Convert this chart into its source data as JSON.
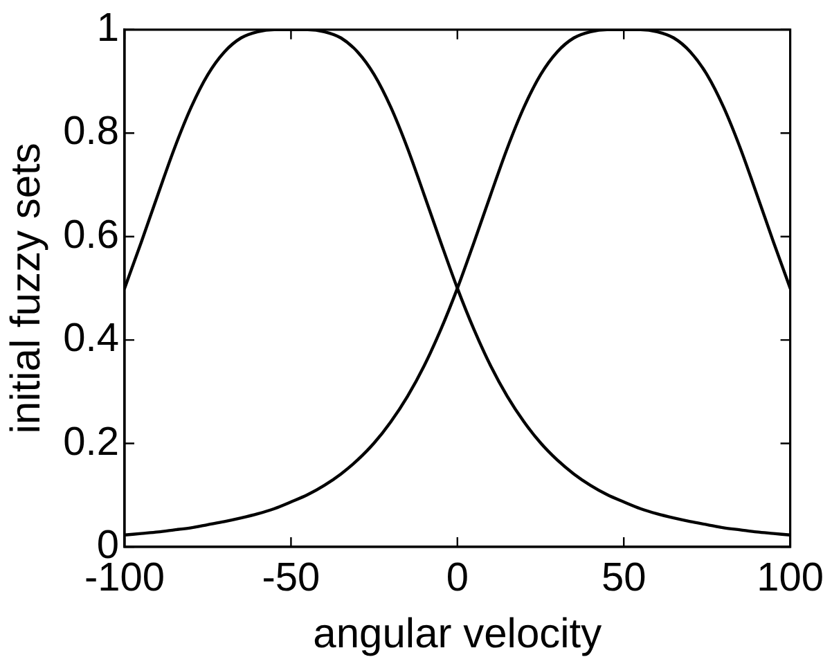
{
  "chart_data": {
    "type": "line",
    "xlabel": "angular velocity",
    "ylabel": "initial fuzzy sets",
    "x": [
      -100,
      -95,
      -90,
      -85,
      -80,
      -75,
      -70,
      -65,
      -60,
      -55,
      -50,
      -45,
      -40,
      -35,
      -30,
      -25,
      -20,
      -15,
      -10,
      -5,
      0,
      5,
      10,
      15,
      20,
      25,
      30,
      35,
      40,
      45,
      50,
      55,
      60,
      65,
      70,
      75,
      80,
      85,
      90,
      95,
      100
    ],
    "series": [
      {
        "color": "#000000",
        "values": [
          0.5,
          0.589,
          0.681,
          0.771,
          0.85,
          0.913,
          0.957,
          0.984,
          0.996,
          1.0,
          1.0,
          1.0,
          0.996,
          0.984,
          0.957,
          0.913,
          0.85,
          0.771,
          0.681,
          0.589,
          0.5,
          0.42,
          0.35,
          0.291,
          0.242,
          0.201,
          0.168,
          0.141,
          0.119,
          0.101,
          0.087,
          0.074,
          0.064,
          0.056,
          0.049,
          0.043,
          0.037,
          0.033,
          0.029,
          0.026,
          0.023
        ]
      },
      {
        "color": "#000000",
        "values": [
          0.023,
          0.026,
          0.029,
          0.033,
          0.037,
          0.043,
          0.049,
          0.056,
          0.064,
          0.074,
          0.087,
          0.101,
          0.119,
          0.141,
          0.168,
          0.201,
          0.242,
          0.291,
          0.35,
          0.42,
          0.5,
          0.589,
          0.681,
          0.771,
          0.85,
          0.913,
          0.957,
          0.984,
          0.996,
          1.0,
          1.0,
          1.0,
          0.996,
          0.984,
          0.957,
          0.913,
          0.85,
          0.771,
          0.681,
          0.589,
          0.5
        ]
      }
    ],
    "xlim": [
      -100,
      100
    ],
    "xticks": [
      -100,
      -50,
      0,
      50,
      100
    ],
    "ylim": [
      0,
      1
    ],
    "yticks": [
      0,
      0.2,
      0.4,
      0.6,
      0.8,
      1
    ],
    "legend": false,
    "marker": "none",
    "line_style": "solid"
  }
}
